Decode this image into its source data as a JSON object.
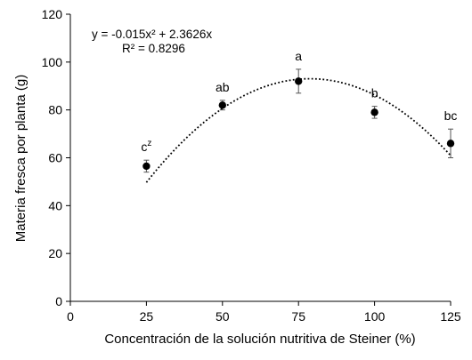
{
  "chart_data": {
    "type": "scatter",
    "xlabel": "Concentración de la solución nutritiva de Steiner (%)",
    "ylabel": "Materia fresca por planta (g)",
    "xlim": [
      0,
      125
    ],
    "ylim": [
      0,
      120
    ],
    "xticks": [
      0,
      25,
      50,
      75,
      100,
      125
    ],
    "yticks": [
      0,
      20,
      40,
      60,
      80,
      100,
      120
    ],
    "grid": false,
    "series": [
      {
        "x": [
          25,
          50,
          75,
          100,
          125
        ],
        "y": [
          56.5,
          82,
          92,
          79,
          66
        ],
        "error": [
          2.5,
          2,
          5,
          2.5,
          6
        ],
        "letters": [
          "c",
          "ab",
          "a",
          "b",
          "bc"
        ]
      }
    ],
    "footnote_marker": "z",
    "trendline": {
      "type": "polynomial",
      "coefficients": {
        "a": -0.015,
        "b": 2.3626,
        "c": 0
      },
      "x_range": [
        25,
        125
      ],
      "equation": "y = -0.015x² + 2.3626x",
      "r_squared": "R² = 0.8296"
    }
  }
}
